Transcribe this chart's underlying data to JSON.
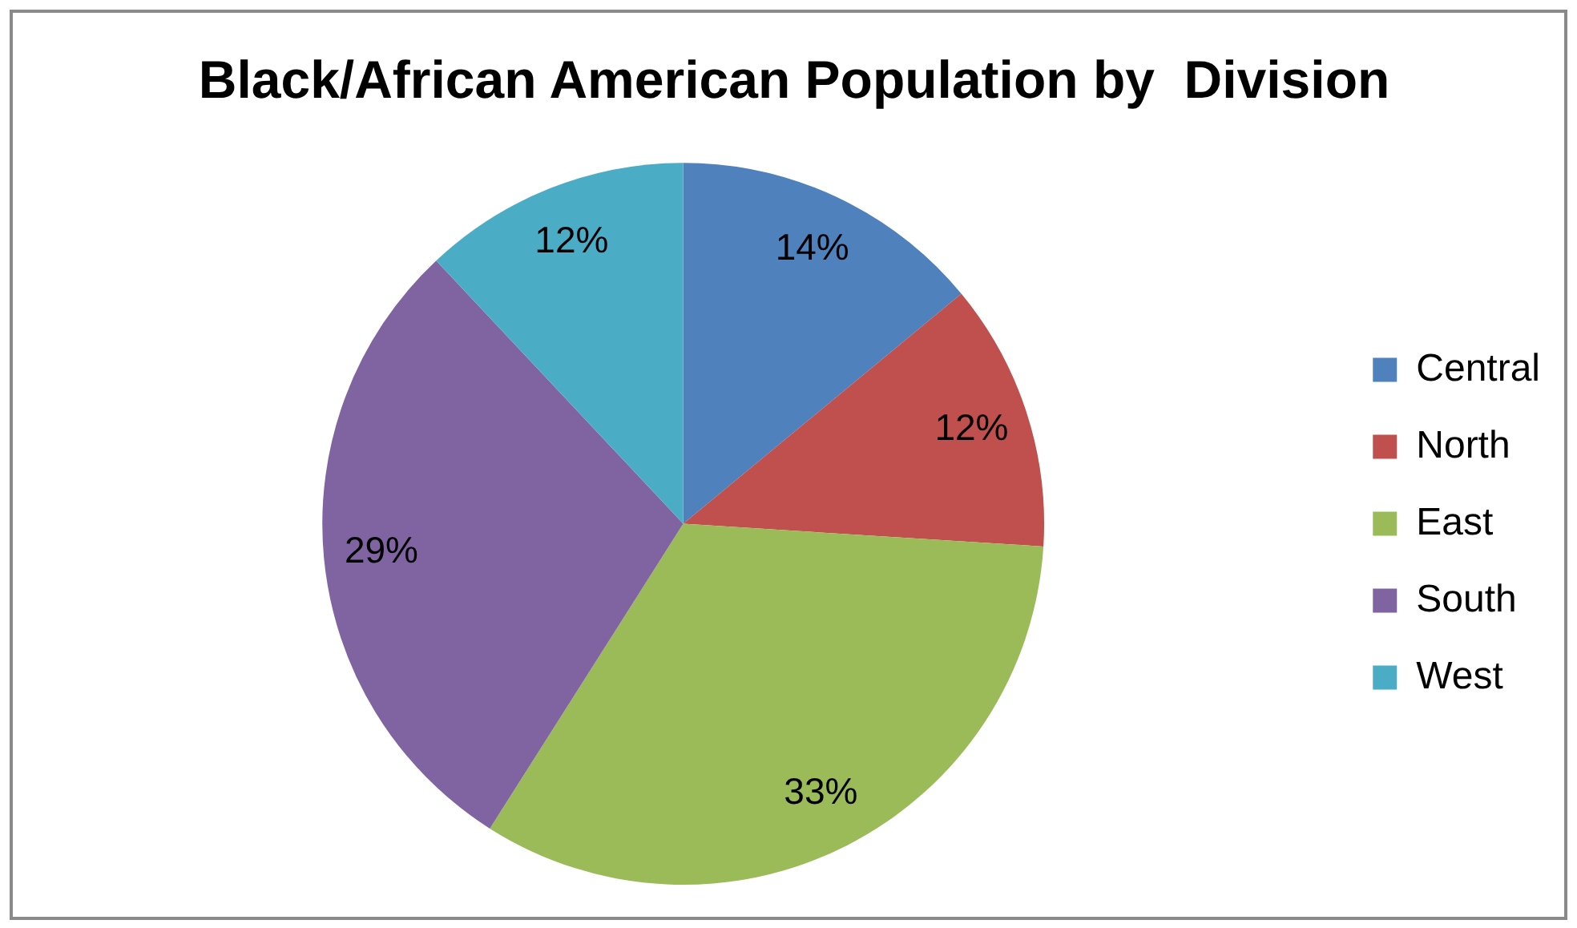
{
  "chart_data": {
    "type": "pie",
    "title": "Black/African American Population by  Division",
    "categories": [
      "Central",
      "North",
      "East",
      "South",
      "West"
    ],
    "values": [
      14,
      12,
      33,
      29,
      12
    ],
    "colors": [
      "#4f81bd",
      "#c0504d",
      "#9bbb59",
      "#8064a2",
      "#4bacc6"
    ],
    "value_labels": [
      "14%",
      "12%",
      "33%",
      "29%",
      "12%"
    ],
    "legend": "right"
  }
}
